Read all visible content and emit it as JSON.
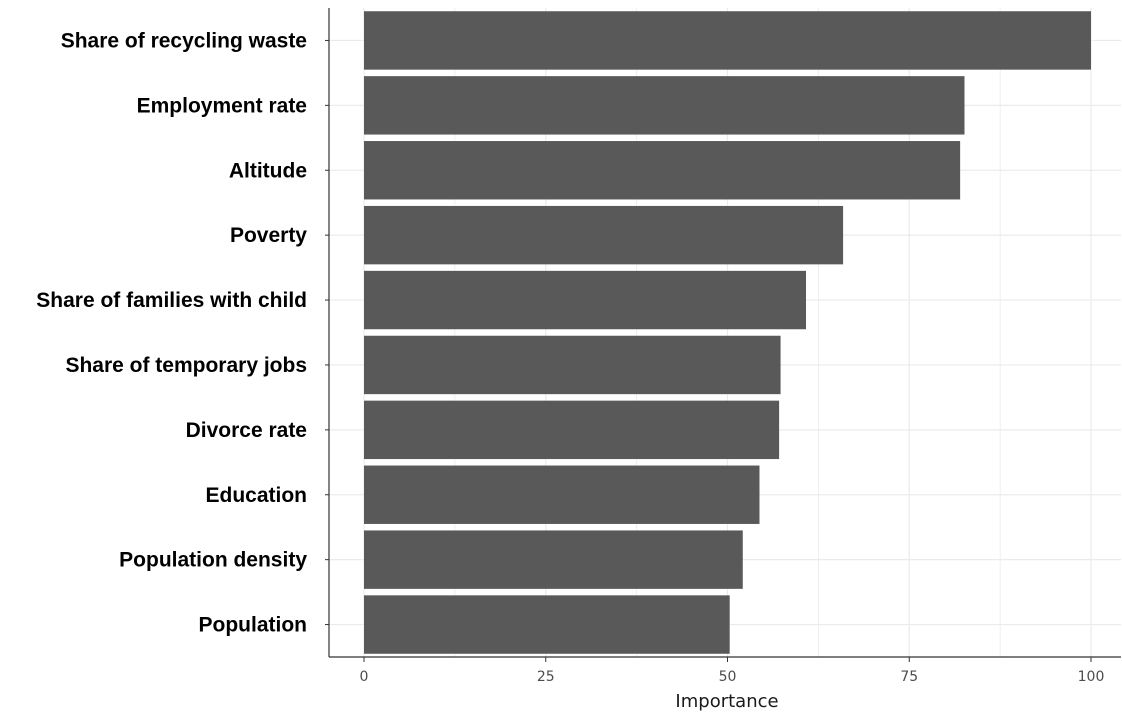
{
  "chart_data": {
    "type": "bar",
    "orientation": "horizontal",
    "categories": [
      "Share of recycling waste",
      "Employment rate",
      "Altitude",
      "Poverty",
      "Share of families with child",
      "Share of temporary jobs",
      "Divorce rate",
      "Education",
      "Population density",
      "Population"
    ],
    "values": [
      100,
      82.6,
      82.0,
      65.9,
      60.8,
      57.3,
      57.1,
      54.4,
      52.1,
      50.3
    ],
    "title": "",
    "xlabel": "Importance",
    "ylabel": "",
    "xlim": [
      -5,
      104
    ],
    "xticks": [
      0,
      25,
      50,
      75,
      100
    ],
    "xtick_labels": [
      "0",
      "25",
      "50",
      "75",
      "100"
    ],
    "grid": true,
    "bar_color": "#595959",
    "grid_color": "#ebebeb",
    "axis_color": "#333333"
  }
}
